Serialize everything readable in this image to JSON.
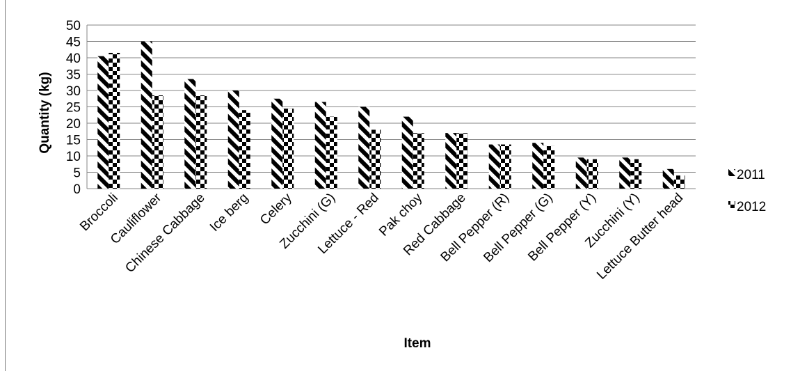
{
  "chart_data": {
    "type": "bar",
    "title": "",
    "xlabel": "Item",
    "ylabel": "Quantity (kg)",
    "ylim": [
      0,
      50
    ],
    "yticks": [
      0,
      5,
      10,
      15,
      20,
      25,
      30,
      35,
      40,
      45,
      50
    ],
    "grid": true,
    "legend_position": "right",
    "categories": [
      "Broccoli",
      "Cauliflower",
      "Chinese Cabbage",
      "Ice berg",
      "Celery",
      "Zucchini (G)",
      "Lettuce - Red",
      "Pak choy",
      "Red Cabbage",
      "Bell Pepper (R)",
      "Bell Pepper (G)",
      "Bell Pepper (Y)",
      "Zucchini  (Y)",
      "Lettuce Butter head"
    ],
    "series": [
      {
        "name": "2011",
        "pattern": "diagonal-stripes",
        "values": [
          40.5,
          45,
          33.5,
          30,
          27.5,
          26.5,
          25,
          22,
          17,
          13.5,
          14,
          9.5,
          9.5,
          6
        ]
      },
      {
        "name": "2012",
        "pattern": "checker",
        "values": [
          41.5,
          28.5,
          28.5,
          24,
          24.5,
          22,
          18,
          17,
          17,
          13.5,
          13,
          9,
          9,
          4
        ]
      }
    ]
  }
}
